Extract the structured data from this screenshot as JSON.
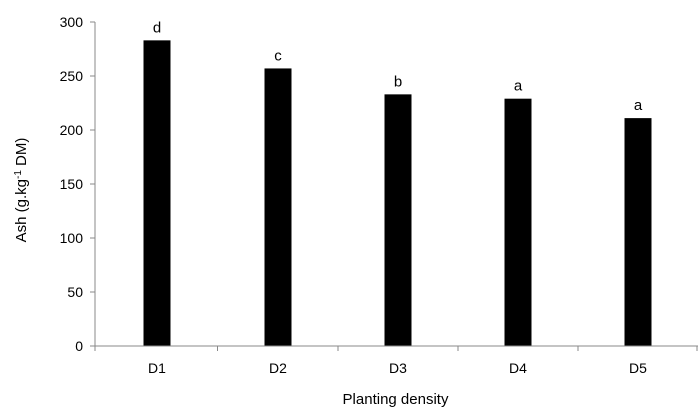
{
  "chart_data": {
    "type": "bar",
    "categories": [
      "D1",
      "D2",
      "D3",
      "D4",
      "D5"
    ],
    "values": [
      283,
      257,
      233,
      229,
      211
    ],
    "data_labels": [
      "d",
      "c",
      "b",
      "a",
      "a"
    ],
    "xlabel": "Planting density",
    "ylabel_main": "Ash (g.kg",
    "ylabel_sup": "-1",
    "ylabel_tail": " DM)",
    "ylim": [
      0,
      300
    ],
    "yticks": [
      "0",
      "50",
      "100",
      "150",
      "200",
      "250",
      "300"
    ],
    "grid": false,
    "legend": "none",
    "bar_color": "#000000",
    "axis_color": "#888888"
  }
}
